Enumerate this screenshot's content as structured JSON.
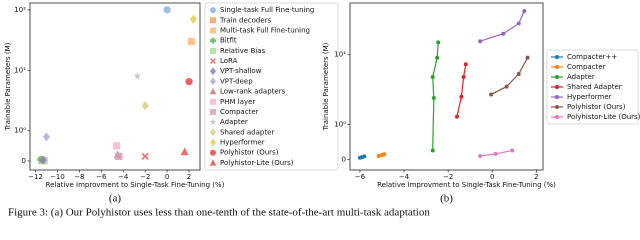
{
  "chart_data": [
    {
      "type": "scatter",
      "caption": "(a)",
      "xlabel": "Relative Improvment to Single-Task Fine-Tuning (%)",
      "ylabel": "Trainable Parameters (M)",
      "yscale": "symlog",
      "xlim": [
        -12.5,
        3
      ],
      "ylim": [
        -0.3,
        130
      ],
      "xticks": [
        {
          "value": -12,
          "label": "−12"
        },
        {
          "value": -10,
          "label": "−10"
        },
        {
          "value": -8,
          "label": "−8"
        },
        {
          "value": -6,
          "label": "−6"
        },
        {
          "value": -4,
          "label": "−4"
        },
        {
          "value": -2,
          "label": "−2"
        },
        0,
        2
      ],
      "yticks": [
        0,
        {
          "value": 1,
          "label": "10⁰"
        },
        {
          "value": 10,
          "label": "10¹"
        },
        {
          "value": 100,
          "label": "10²"
        }
      ],
      "series": [
        {
          "name": "Single-task Full Fine-tuning",
          "color": "#8ab4dc",
          "marker": "circle",
          "x": [
            0
          ],
          "values": [
            100
          ]
        },
        {
          "name": "Train decoders",
          "color": "#f0a060",
          "marker": "square",
          "x": [
            -11.4
          ],
          "values": [
            0.02
          ]
        },
        {
          "name": "Multi-task Full Fine-tuning",
          "color": "#ffbb78",
          "marker": "square",
          "x": [
            2.2
          ],
          "values": [
            30
          ]
        },
        {
          "name": "Bitfit",
          "color": "#5cb85c",
          "marker": "plus",
          "x": [
            -11.5
          ],
          "values": [
            0.05
          ]
        },
        {
          "name": "Relative Bias",
          "color": "#a8dd98",
          "marker": "square",
          "x": [
            -11.2
          ],
          "values": [
            0.01
          ]
        },
        {
          "name": "LoRA",
          "color": "#e06060",
          "marker": "x",
          "x": [
            -2
          ],
          "values": [
            0.15
          ]
        },
        {
          "name": "VPT-shallow",
          "color": "#8c7bc0",
          "marker": "diamond",
          "x": [
            -11.3
          ],
          "values": [
            0.03
          ]
        },
        {
          "name": "VPT-deep",
          "color": "#b7a6d6",
          "marker": "diamond",
          "x": [
            -11
          ],
          "values": [
            0.8
          ]
        },
        {
          "name": "Low-rank adapters",
          "color": "#b07a70",
          "marker": "triangle",
          "x": [
            -4.5
          ],
          "values": [
            0.2
          ]
        },
        {
          "name": "PHM layer",
          "color": "#f7b6d2",
          "marker": "square",
          "x": [
            -4.6
          ],
          "values": [
            0.5
          ]
        },
        {
          "name": "Compacter",
          "color": "#d9a0b0",
          "marker": "square",
          "x": [
            -4.4
          ],
          "values": [
            0.15
          ]
        },
        {
          "name": "Adapter",
          "color": "#c0c0c0",
          "marker": "star",
          "x": [
            -2.7
          ],
          "values": [
            8
          ]
        },
        {
          "name": "Shared adapter",
          "color": "#d6cf8a",
          "marker": "diamond",
          "x": [
            -2
          ],
          "values": [
            2.6
          ]
        },
        {
          "name": "Hyperformer",
          "color": "#e3d04c",
          "marker": "diamond",
          "x": [
            2.4
          ],
          "values": [
            70
          ]
        },
        {
          "name": "Polyhistor (Ours)",
          "color": "#ee4040",
          "marker": "circle",
          "x": [
            2
          ],
          "values": [
            6.5
          ]
        },
        {
          "name": "Polyhistor-Lite (Ours)",
          "color": "#e8524f",
          "marker": "triangle",
          "x": [
            1.6
          ],
          "values": [
            0.3
          ]
        }
      ]
    },
    {
      "type": "line",
      "caption": "(b)",
      "xlabel": "Relative Improvment to Single-Task Fine-Tuning (%)",
      "ylabel": "Trainable Parameters (M)",
      "yscale": "symlog",
      "xlim": [
        -6.45,
        2.3
      ],
      "ylim": [
        -0.3,
        55
      ],
      "xticks": [
        {
          "value": -6,
          "label": "−6"
        },
        {
          "value": -4,
          "label": "−4"
        },
        {
          "value": -2,
          "label": "−2"
        },
        0,
        2
      ],
      "yticks": [
        0,
        {
          "value": 1,
          "label": "10⁰"
        },
        {
          "value": 10,
          "label": "10¹"
        }
      ],
      "series": [
        {
          "name": "Compacter++",
          "color": "#1f77b4",
          "x": [
            -6.0,
            -5.9,
            -5.8
          ],
          "values": [
            0.05,
            0.07,
            0.09
          ]
        },
        {
          "name": "Compacter",
          "color": "#ff7f0e",
          "x": [
            -5.15,
            -5.0,
            -4.9
          ],
          "values": [
            0.1,
            0.13,
            0.15
          ]
        },
        {
          "name": "Adapter",
          "color": "#2ca02c",
          "x": [
            -2.7,
            -2.65,
            -2.7,
            -2.5,
            -2.45
          ],
          "values": [
            0.26,
            2.4,
            4.8,
            9,
            15
          ]
        },
        {
          "name": "Shared Adapter",
          "color": "#d62728",
          "x": [
            -1.6,
            -1.4,
            -1.3,
            -1.2
          ],
          "values": [
            1.3,
            2.5,
            4.8,
            7.3
          ]
        },
        {
          "name": "Hyperformer",
          "color": "#9467bd",
          "x": [
            -0.55,
            0.5,
            1.2,
            1.45
          ],
          "values": [
            15.6,
            20,
            28,
            42
          ]
        },
        {
          "name": "Polyhistor (Ours)",
          "color": "#8c564b",
          "x": [
            -0.05,
            0.65,
            1.2,
            1.6
          ],
          "values": [
            2.7,
            3.5,
            5.3,
            9.1
          ]
        },
        {
          "name": "Polyhistor-Lite (Ours)",
          "color": "#e377c2",
          "x": [
            -0.55,
            0.15,
            0.9
          ],
          "values": [
            0.1,
            0.16,
            0.26
          ]
        }
      ]
    }
  ],
  "figure_caption": "Figure 3: (a) Our Polyhistor uses less than one-tenth of the state-of-the-art multi-task adaptation"
}
